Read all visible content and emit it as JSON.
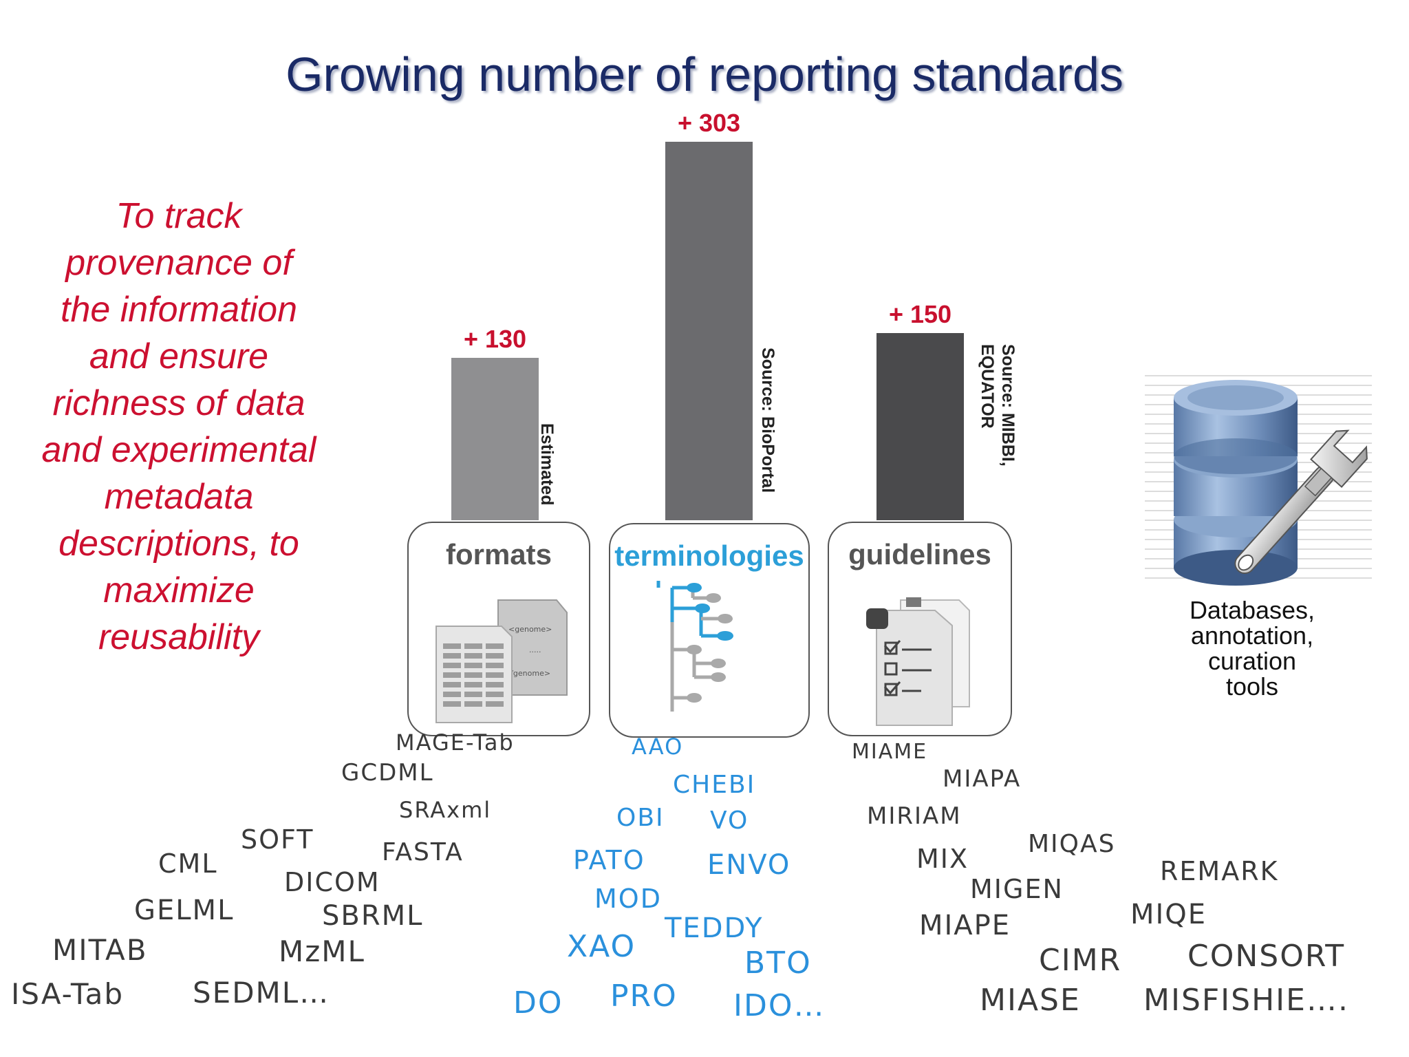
{
  "title": "Growing number of reporting standards",
  "motivation_lines": [
    "To track",
    "provenance of",
    "the information",
    "and ensure",
    "richness of data",
    "and experimental",
    "metadata",
    "descriptions, to",
    "maximize",
    "reusability"
  ],
  "chart_data": {
    "type": "bar",
    "categories": [
      "formats",
      "terminologies",
      "guidelines"
    ],
    "values": [
      130,
      303,
      150
    ],
    "value_labels": [
      "+ 130",
      "+ 303",
      "+ 150"
    ],
    "sources": [
      [
        "Estimated"
      ],
      [
        "Source: BioPortal"
      ],
      [
        "Source: MIBBI,",
        "EQUATOR"
      ]
    ],
    "colors": [
      "#8f8f91",
      "#6b6b6e",
      "#4a4a4c"
    ]
  },
  "keywords": {
    "formats": [
      "MAGE-Tab",
      "GCDML",
      "SRAxml",
      "SOFT",
      "FASTA",
      "CML",
      "DICOM",
      "GELML",
      "SBRML",
      "MITAB",
      "MzML",
      "ISA-Tab",
      "SEDML…"
    ],
    "terminologies": [
      "AAO",
      "CHEBI",
      "OBI",
      "VO",
      "PATO",
      "ENVO",
      "MOD",
      "TEDDY",
      "XAO",
      "BTO",
      "DO",
      "PRO",
      "IDO…"
    ],
    "guidelines": [
      "MIAME",
      "MIAPA",
      "MIRIAM",
      "MIQAS",
      "MIX",
      "REMARK",
      "MIGEN",
      "MIQE",
      "MIAPE",
      "CIMR",
      "CONSORT",
      "MIASE",
      "MISFISHIE…."
    ]
  },
  "colors": {
    "title": "#1a2a66",
    "accent_red": "#cc1030",
    "term_blue": "#2a90dc"
  },
  "db_caption": [
    "Databases,",
    "annotation,",
    "curation",
    "tools"
  ],
  "icons": [
    "formats-documents-icon",
    "terminology-tree-icon",
    "guidelines-checklist-icon",
    "database-wrench-icon"
  ]
}
